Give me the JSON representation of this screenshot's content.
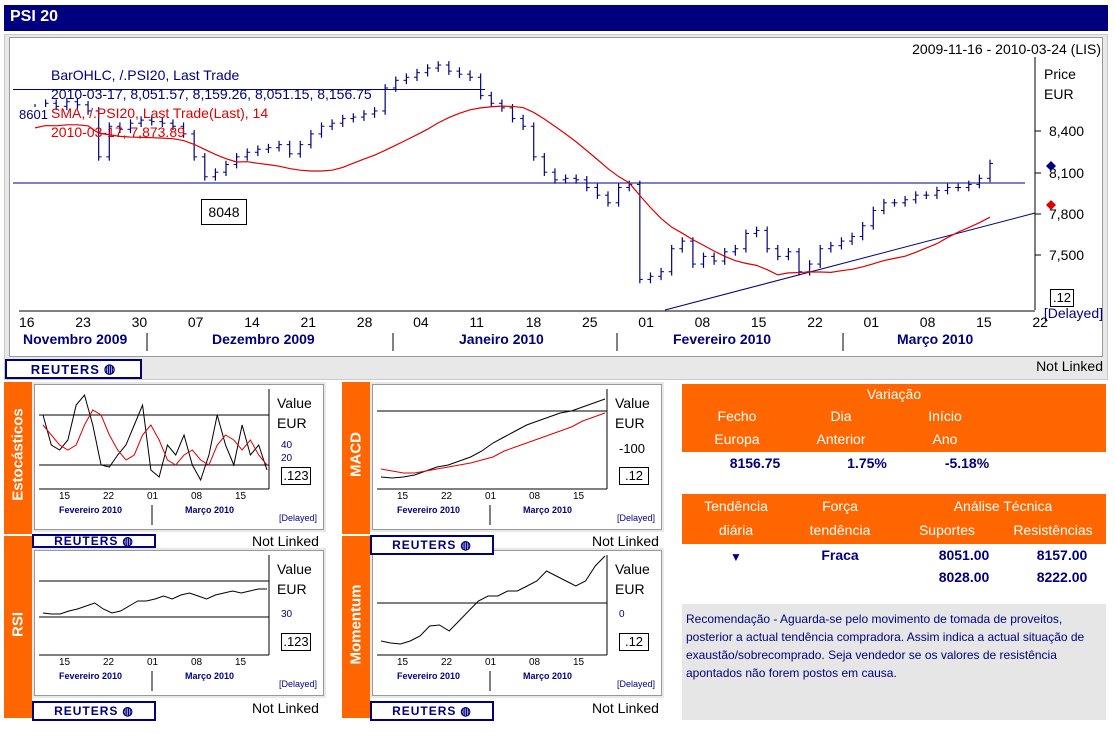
{
  "title": "PSI 20",
  "main": {
    "date_range": "2009-11-16 - 2010-03-24 (LIS)",
    "legend1": "BarOHLC, /.PSI20, Last Trade",
    "legend1_values": "2010-03-17, 8,051.57, 8,159.26, 8,051.15, 8,156.75",
    "legend2": "SMA, /.PSI20, Last Trade(Last), 14",
    "legend2_values": "2010-03-17, 7,873.89",
    "axis_title": "Price",
    "axis_unit": "EUR",
    "hline_label": "8601",
    "box_label": "8048",
    "scale_box": ".12",
    "delayed": "[Delayed]",
    "not_linked": "Not Linked",
    "reuters": "REUTERS",
    "month_labels": [
      "Novembro 2009",
      "Dezembro 2009",
      "Janeiro 2010",
      "Fevereiro 2010",
      "Março 2010"
    ],
    "x_ticks": [
      "16",
      "23",
      "30",
      "07",
      "14",
      "21",
      "28",
      "04",
      "11",
      "18",
      "25",
      "01",
      "08",
      "15",
      "22",
      "01",
      "08",
      "15",
      "22"
    ],
    "y_ticks": [
      "8,400",
      "8,100",
      "7,800",
      "7,500"
    ]
  },
  "chart_data": [
    {
      "type": "bar",
      "title": "PSI 20 BarOHLC",
      "ylim": [
        7200,
        8800
      ],
      "series": [
        {
          "name": "BarOHLC, /.PSI20, Last Trade",
          "closes": [
            8520,
            8550,
            8530,
            8560,
            8540,
            8500,
            8200,
            8400,
            8380,
            8420,
            8440,
            8430,
            8420,
            8400,
            8350,
            8200,
            8070,
            8100,
            8150,
            8200,
            8230,
            8250,
            8260,
            8280,
            8220,
            8280,
            8350,
            8400,
            8420,
            8450,
            8460,
            8480,
            8500,
            8650,
            8700,
            8720,
            8750,
            8780,
            8800,
            8760,
            8740,
            8720,
            8600,
            8550,
            8520,
            8450,
            8400,
            8200,
            8100,
            8050,
            8060,
            8050,
            8000,
            7950,
            7900,
            8000,
            8020,
            7400,
            7420,
            7450,
            7600,
            7650,
            7500,
            7550,
            7520,
            7580,
            7600,
            7700,
            7720,
            7600,
            7550,
            7580,
            7450,
            7500,
            7600,
            7620,
            7650,
            7680,
            7750,
            7850,
            7900,
            7900,
            7920,
            7950,
            7950,
            7980,
            8000,
            8000,
            8020,
            8060,
            8157
          ]
        },
        {
          "name": "SMA, /.PSI20, Last Trade(Last), 14",
          "values_start": 8450,
          "values_min": 7550,
          "values_last": 7873.89
        }
      ]
    },
    {
      "type": "line",
      "title": "Estocásticos",
      "yticks": [
        "40",
        "20"
      ],
      "series": [
        {
          "name": "black"
        },
        {
          "name": "red"
        }
      ]
    },
    {
      "type": "line",
      "title": "MACD",
      "yticks": [
        "-100"
      ]
    },
    {
      "type": "line",
      "title": "RSI",
      "yticks": [
        "30"
      ]
    },
    {
      "type": "line",
      "title": "Momentum",
      "yticks": [
        "0"
      ]
    }
  ],
  "panels": {
    "stoch": {
      "label": "Estocásticos",
      "value": "Value",
      "unit": "EUR",
      "t1": "40",
      "t2": "20",
      "box": ".123"
    },
    "macd": {
      "label": "MACD",
      "value": "Value",
      "unit": "EUR",
      "t1": "-100",
      "box": ".12"
    },
    "rsi": {
      "label": "RSI",
      "value": "Value",
      "unit": "EUR",
      "t1": "30",
      "box": ".123"
    },
    "mom": {
      "label": "Momentum",
      "value": "Value",
      "unit": "EUR",
      "t1": "0",
      "box": ".12"
    },
    "x_ticks": [
      "15",
      "22",
      "01",
      "08",
      "15"
    ],
    "month1": "Fevereiro 2010",
    "month2": "Março 2010",
    "delayed": "[Delayed]",
    "not_linked": "Not Linked",
    "reuters": "REUTERS"
  },
  "variacao": {
    "header": "Variação",
    "col1a": "Fecho",
    "col1b": "Europa",
    "col2a": "Dia",
    "col2b": "Anterior",
    "col3a": "Início",
    "col3b": "Ano",
    "v1": "8156.75",
    "v2": "1.75%",
    "v3": "-5.18%"
  },
  "tendencia": {
    "h1a": "Tendência",
    "h1b": "diária",
    "h2a": "Força",
    "h2b": "tendência",
    "h3": "Análise Técnica",
    "h3a": "Suportes",
    "h3b": "Resistências",
    "forca": "Fraca",
    "s1": "8051.00",
    "r1": "8157.00",
    "s2": "8028.00",
    "r2": "8222.00"
  },
  "recomendacao": "Recomendação - Aguarda-se pelo movimento de tomada de proveitos, posterior a actual tendência compradora. Assim indica a actual situação de exaustão/sobrecomprado. Seja vendedor se os valores de resistência apontados não forem postos em causa.",
  "colors": {
    "navy": "#00007f",
    "orange": "#ff6600",
    "red": "#e00000"
  }
}
